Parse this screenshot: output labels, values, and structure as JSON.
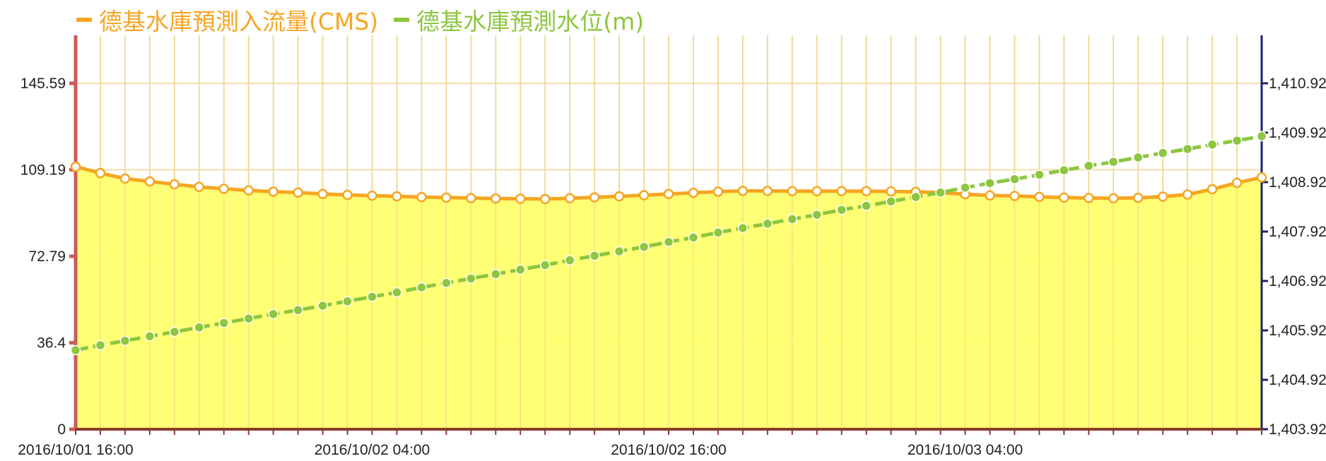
{
  "legend": [
    {
      "name": "德基水庫預測入流量(CMS)",
      "color": "#f5a623"
    },
    {
      "name": "德基水庫預測水位(m)",
      "color": "#8dc63f"
    }
  ],
  "chart_data": {
    "type": "area+line",
    "x_tick_labels": [
      "2016/10/01 16:00",
      "2016/10/02 04:00",
      "2016/10/02 16:00",
      "2016/10/03 04:00"
    ],
    "x_tick_index": [
      0,
      12,
      24,
      36
    ],
    "left_axis": {
      "ticks": [
        "0",
        "36.4",
        "72.79",
        "109.19",
        "145.59"
      ],
      "ylim": [
        0,
        145.59
      ]
    },
    "right_axis": {
      "ticks": [
        "1,403.92",
        "1,404.92",
        "1,405.92",
        "1,406.92",
        "1,407.92",
        "1,408.92",
        "1,409.92",
        "1,410.92"
      ],
      "ylim": [
        1403.92,
        1410.92
      ]
    },
    "grid": true,
    "legend_position": "top-left",
    "series": [
      {
        "name": "德基水庫預測入流量(CMS)",
        "axis": "left",
        "type": "area",
        "color": "#f5a623",
        "fill": "#ffff66",
        "values": [
          110.5,
          107.8,
          105.5,
          104.3,
          103.1,
          102.0,
          101.2,
          100.5,
          100.0,
          99.6,
          99.0,
          98.6,
          98.3,
          98.0,
          97.7,
          97.5,
          97.3,
          97.1,
          97.0,
          96.9,
          97.2,
          97.6,
          98.0,
          98.5,
          99.0,
          99.5,
          100.0,
          100.3,
          100.3,
          100.2,
          100.2,
          100.2,
          100.2,
          100.1,
          99.9,
          99.6,
          98.9,
          98.4,
          98.2,
          97.8,
          97.5,
          97.3,
          97.2,
          97.4,
          97.9,
          98.8,
          101.0,
          103.7,
          106.0
        ]
      },
      {
        "name": "德基水庫預測水位(m)",
        "axis": "right",
        "type": "line",
        "color": "#8dc63f",
        "values": [
          1405.52,
          1405.62,
          1405.71,
          1405.8,
          1405.89,
          1405.98,
          1406.07,
          1406.16,
          1406.25,
          1406.33,
          1406.42,
          1406.51,
          1406.6,
          1406.69,
          1406.79,
          1406.88,
          1406.97,
          1407.06,
          1407.15,
          1407.24,
          1407.34,
          1407.43,
          1407.52,
          1407.61,
          1407.71,
          1407.8,
          1407.9,
          1407.99,
          1408.08,
          1408.17,
          1408.26,
          1408.36,
          1408.44,
          1408.53,
          1408.62,
          1408.71,
          1408.81,
          1408.9,
          1408.98,
          1409.07,
          1409.16,
          1409.25,
          1409.33,
          1409.42,
          1409.51,
          1409.59,
          1409.68,
          1409.76,
          1409.85
        ]
      }
    ]
  }
}
